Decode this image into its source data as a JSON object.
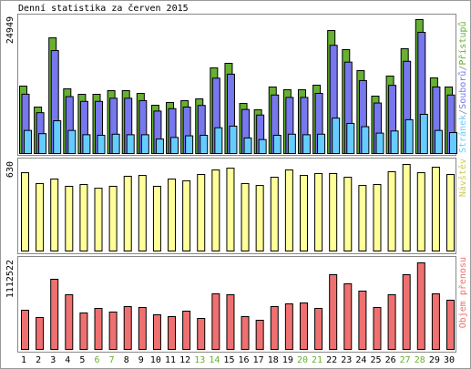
{
  "chart_data": [
    {
      "type": "bar",
      "title": "Denní statistika za červen 2015",
      "legend_separator": "/",
      "series": [
        {
          "name": "Přístupů",
          "color": "#66b032",
          "values": [
            12560,
            8650,
            21550,
            12050,
            11030,
            11030,
            11710,
            11710,
            11200,
            8990,
            9500,
            9840,
            10180,
            15950,
            16800,
            9330,
            8150,
            12390,
            11880,
            11880,
            12730,
            22910,
            19350,
            15440,
            10690,
            14430,
            19520,
            24949,
            14090,
            12390
          ]
        },
        {
          "name": "Souborů",
          "color": "#7777ee",
          "values": [
            11050,
            7610,
            19180,
            10600,
            9710,
            9710,
            10300,
            10300,
            9860,
            7910,
            8360,
            8660,
            8960,
            14040,
            14780,
            8210,
            7170,
            10900,
            10450,
            10450,
            11200,
            20160,
            17030,
            13590,
            9410,
            12700,
            17180,
            22580,
            12400,
            10900
          ]
        },
        {
          "name": "Stránek",
          "color": "#66ccff",
          "values": [
            4300,
            3700,
            6100,
            4300,
            3500,
            3400,
            3600,
            3500,
            3500,
            2700,
            3000,
            3300,
            3400,
            4800,
            5100,
            2900,
            2600,
            3400,
            3600,
            3500,
            3600,
            6600,
            5600,
            5000,
            3800,
            4200,
            6300,
            7300,
            4300,
            3900
          ]
        }
      ],
      "ylim": [
        0,
        24949
      ],
      "yticks": [
        24949
      ]
    },
    {
      "type": "bar",
      "ylabel": "Návštěv",
      "color": "#ffff99",
      "label_color": "#cccc55",
      "values": [
        570,
        491,
        524,
        471,
        484,
        457,
        471,
        544,
        550,
        471,
        524,
        511,
        557,
        590,
        603,
        491,
        477,
        537,
        590,
        550,
        564,
        564,
        537,
        477,
        484,
        577,
        630,
        570,
        610,
        557
      ],
      "ylim": [
        0,
        630
      ],
      "yticks": [
        630
      ]
    },
    {
      "type": "bar",
      "ylabel": "Objem přenosu",
      "color": "#ef7070",
      "label_color": "#ef7070",
      "values": [
        503570,
        409890,
        901750,
        702660,
        468440,
        527000,
        480150,
        550420,
        538710,
        445020,
        421600,
        491860,
        398170,
        714370,
        702660,
        421600,
        374750,
        550420,
        585550,
        597260,
        527000,
        960300,
        843190,
        749500,
        538710,
        702660,
        960300,
        1112522,
        714370,
        632390
      ],
      "ylim": [
        0,
        1112522
      ],
      "yticks": [
        1112522
      ],
      "categories": [
        "1",
        "2",
        "3",
        "4",
        "5",
        "6",
        "7",
        "8",
        "9",
        "10",
        "11",
        "12",
        "13",
        "14",
        "15",
        "16",
        "17",
        "18",
        "19",
        "20",
        "21",
        "22",
        "23",
        "24",
        "25",
        "26",
        "27",
        "28",
        "29",
        "30"
      ],
      "category_colors": [
        "#000",
        "#000",
        "#000",
        "#000",
        "#000",
        "#66b032",
        "#66b032",
        "#000",
        "#000",
        "#000",
        "#000",
        "#000",
        "#66b032",
        "#66b032",
        "#000",
        "#000",
        "#000",
        "#000",
        "#000",
        "#66b032",
        "#66b032",
        "#000",
        "#000",
        "#000",
        "#000",
        "#000",
        "#66b032",
        "#66b032",
        "#000",
        "#000"
      ]
    }
  ]
}
